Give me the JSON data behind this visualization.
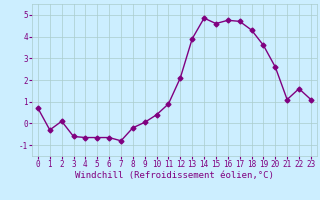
{
  "x": [
    0,
    1,
    2,
    3,
    4,
    5,
    6,
    7,
    8,
    9,
    10,
    11,
    12,
    13,
    14,
    15,
    16,
    17,
    18,
    19,
    20,
    21,
    22,
    23
  ],
  "y": [
    0.7,
    -0.3,
    0.1,
    -0.6,
    -0.65,
    -0.65,
    -0.65,
    -0.8,
    -0.2,
    0.05,
    0.4,
    0.9,
    2.1,
    3.9,
    4.85,
    4.6,
    4.75,
    4.7,
    4.3,
    3.6,
    2.6,
    1.1,
    1.6,
    1.1
  ],
  "color": "#800080",
  "marker": "D",
  "markersize": 2.5,
  "linewidth": 1.0,
  "xlabel": "Windchill (Refroidissement éolien,°C)",
  "xlabel_fontsize": 6.5,
  "ylim": [
    -1.5,
    5.5
  ],
  "xlim": [
    -0.5,
    23.5
  ],
  "yticks": [
    -1,
    0,
    1,
    2,
    3,
    4,
    5
  ],
  "xticks": [
    0,
    1,
    2,
    3,
    4,
    5,
    6,
    7,
    8,
    9,
    10,
    11,
    12,
    13,
    14,
    15,
    16,
    17,
    18,
    19,
    20,
    21,
    22,
    23
  ],
  "bg_color": "#cceeff",
  "grid_color": "#aacccc",
  "tick_fontsize": 5.5
}
